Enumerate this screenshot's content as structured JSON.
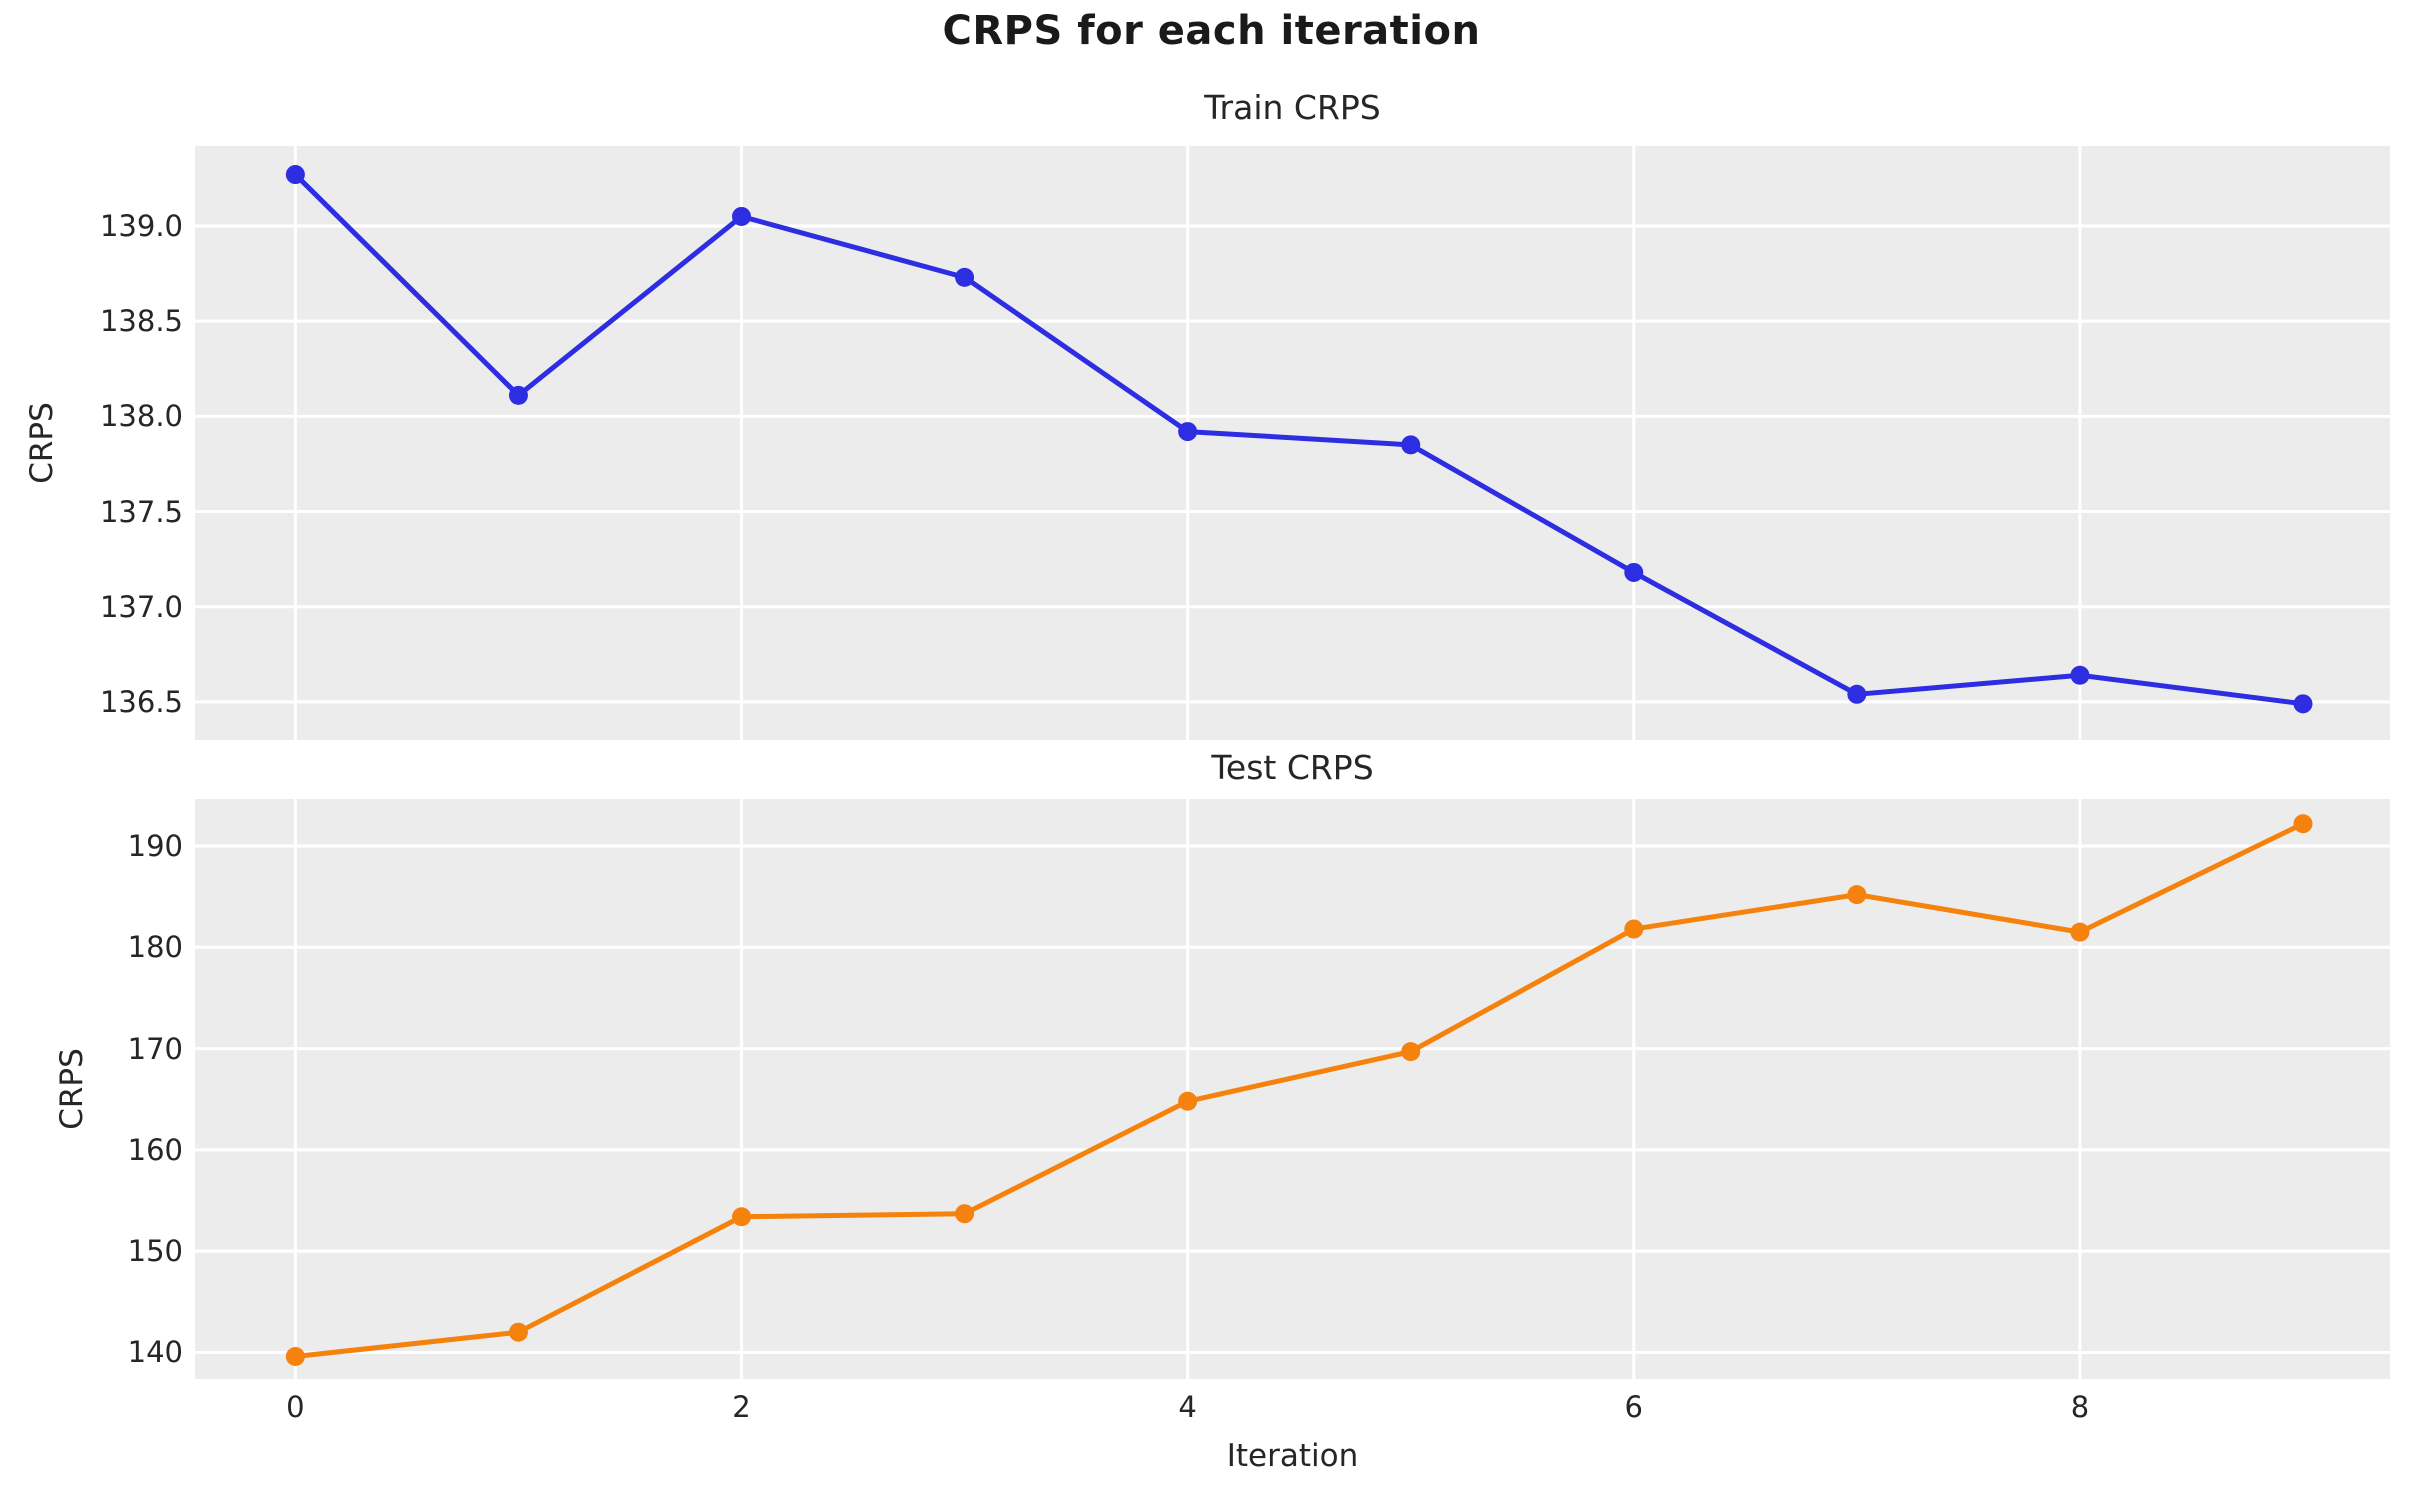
{
  "figure": {
    "suptitle": "CRPS for each iteration"
  },
  "chart_data": [
    {
      "type": "line",
      "title": "Train CRPS",
      "ylabel": "CRPS",
      "xlabel": "",
      "color": "#2D2DE1",
      "marker": "circle",
      "grid": true,
      "legend": "none",
      "x": [
        0,
        1,
        2,
        3,
        4,
        5,
        6,
        7,
        8,
        9
      ],
      "y": [
        139.27,
        138.11,
        139.05,
        138.73,
        137.92,
        137.85,
        137.18,
        136.54,
        136.64,
        136.49
      ],
      "xlim": [
        -0.45,
        9.39
      ],
      "ylim": [
        136.3,
        139.42
      ],
      "xgrid": [
        0,
        2,
        4,
        6,
        8
      ],
      "yticks": [
        {
          "label": "139.0",
          "value": 139.0
        },
        {
          "label": "138.5",
          "value": 138.5
        },
        {
          "label": "138.0",
          "value": 138.0
        },
        {
          "label": "137.5",
          "value": 137.5
        },
        {
          "label": "137.0",
          "value": 137.0
        },
        {
          "label": "136.5",
          "value": 136.5
        }
      ],
      "xticks": []
    },
    {
      "type": "line",
      "title": "Test CRPS",
      "ylabel": "CRPS",
      "xlabel": "Iteration",
      "color": "#F5820D",
      "marker": "circle",
      "grid": true,
      "legend": "none",
      "x": [
        0,
        1,
        2,
        3,
        4,
        5,
        6,
        7,
        8,
        9
      ],
      "y": [
        139.6,
        142.0,
        153.4,
        153.7,
        164.8,
        169.7,
        181.8,
        185.2,
        181.5,
        192.2
      ],
      "xlim": [
        -0.45,
        9.39
      ],
      "ylim": [
        137.38,
        194.64
      ],
      "xgrid": [
        0,
        2,
        4,
        6,
        8
      ],
      "yticks": [
        {
          "label": "190",
          "value": 190
        },
        {
          "label": "180",
          "value": 180
        },
        {
          "label": "170",
          "value": 170
        },
        {
          "label": "160",
          "value": 160
        },
        {
          "label": "150",
          "value": 150
        },
        {
          "label": "140",
          "value": 140
        }
      ],
      "xticks": [
        {
          "label": "0",
          "value": 0
        },
        {
          "label": "2",
          "value": 2
        },
        {
          "label": "4",
          "value": 4
        },
        {
          "label": "6",
          "value": 6
        },
        {
          "label": "8",
          "value": 8
        }
      ]
    }
  ]
}
